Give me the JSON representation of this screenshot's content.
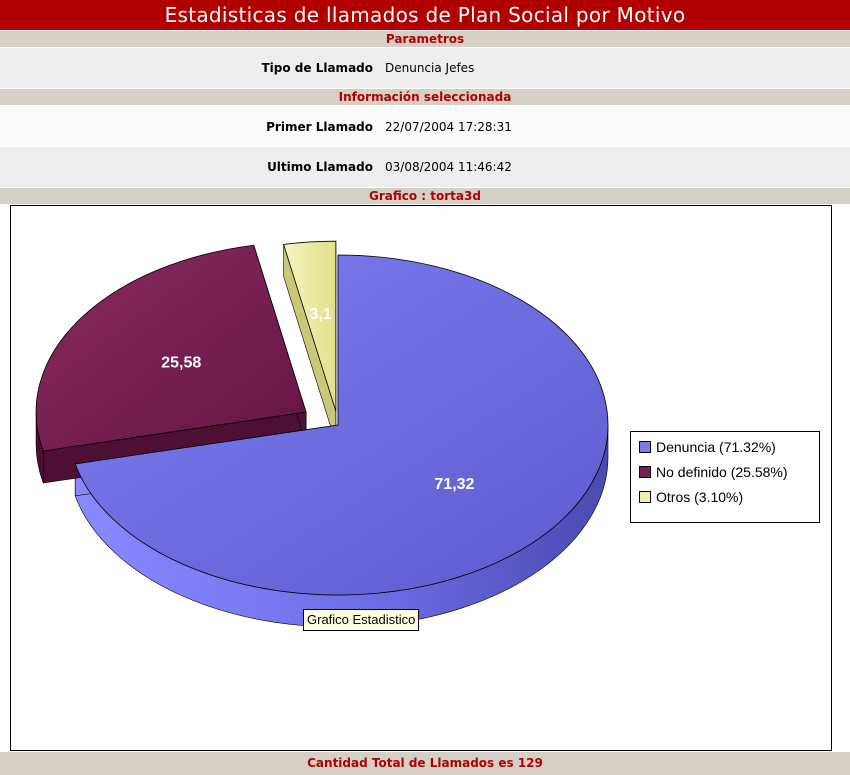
{
  "page": {
    "title": "Estadisticas de llamados de Plan Social por Motivo"
  },
  "parametros": {
    "header": "Parametros",
    "tipo_label": "Tipo de Llamado",
    "tipo_value": "Denuncia Jefes"
  },
  "informacion": {
    "header": "Información seleccionada",
    "primer_label": "Primer Llamado",
    "primer_value": "22/07/2004 17:28:31",
    "ultimo_label": "Ultimo Llamado",
    "ultimo_value": "03/08/2004 11:46:42"
  },
  "grafico": {
    "header": "Grafico : torta3d",
    "tooltip": "Grafico Estadistico"
  },
  "footer": {
    "total_text": "Cantidad Total de Llamados es 129"
  },
  "colors": {
    "title_bg": "#b10000",
    "section_bg": "#d4d0c8",
    "section_text": "#b10000"
  },
  "chart_data": {
    "type": "pie",
    "style": "3d-exploded",
    "categories": [
      "Denuncia",
      "No definido",
      "Otros"
    ],
    "values": [
      71.32,
      25.58,
      3.1
    ],
    "data_labels": [
      "71,32",
      "25,58",
      "3,1"
    ],
    "legend_entries": [
      "Denuncia (71.32%)",
      "No definido (25.58%)",
      "Otros (3.10%)"
    ],
    "colors": [
      "#7b7be0",
      "#7a1f55",
      "#f0f0a8"
    ],
    "legend_position": "right"
  }
}
